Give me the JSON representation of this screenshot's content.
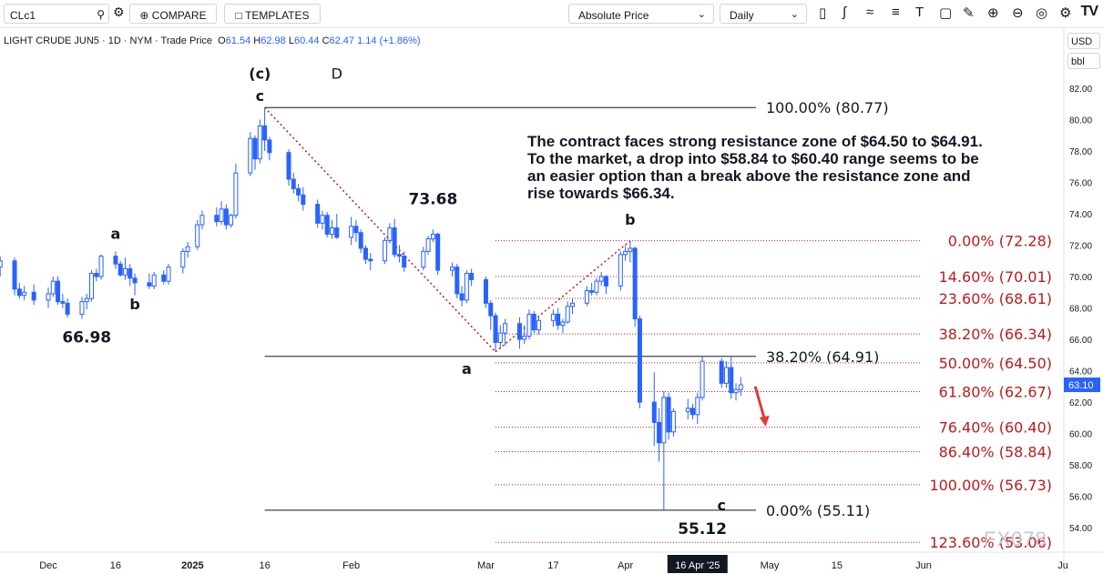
{
  "toolbar": {
    "symbol": "CLc1",
    "compare_label": "COMPARE",
    "templates_label": "TEMPLATES",
    "price_mode": "Absolute Price",
    "interval": "Daily",
    "logo": "TV"
  },
  "legend": {
    "name": "LIGHT CRUDE JUN5 · 1D · NYM · Trade Price",
    "o_label": "O",
    "o": "61.54",
    "h_label": "H",
    "h": "62.98",
    "l_label": "L",
    "l": "60.44",
    "c_label": "C",
    "c": "62.47",
    "change": "1.14 (+1.86%)"
  },
  "currency": "USD",
  "unit": "bbl",
  "note": "The contract faces strong resistance zone of $64.50 to $64.91. To the market, a drop into $58.84 to $60.40 range seems to be an easier option than a break above the resistance zone and rise towards $66.34.",
  "watermark": "FX078",
  "colors": {
    "up": "#ffffff",
    "down": "#2962ff",
    "fib": "#b71c1c",
    "line": "#131722",
    "arrow": "#e53935",
    "lastprice": "#2962ff"
  },
  "chart_data": {
    "type": "candlestick",
    "title": "",
    "ylim": [
      53.0,
      84.0
    ],
    "y_ticks": [
      54,
      56,
      58,
      60,
      62,
      64,
      66,
      68,
      70,
      72,
      74,
      76,
      78,
      80,
      82
    ],
    "y_tick_labels": [
      "54.00",
      "56.00",
      "58.00",
      "60.00",
      "62.00",
      "64.00",
      "66.00",
      "68.00",
      "70.00",
      "72.00",
      "74.00",
      "76.00",
      "78.00",
      "80.00",
      "82.00"
    ],
    "x_labels": [
      "Dec",
      "16",
      "2025",
      "16",
      "Feb",
      "Mar",
      "17",
      "Apr",
      "16 Apr '25",
      "May",
      "15",
      "Jun",
      "Ju"
    ],
    "x_label_dates": [
      "2024-12-02",
      "2024-12-16",
      "2025-01-01",
      "2025-01-16",
      "2025-02-03",
      "2025-03-03",
      "2025-03-17",
      "2025-04-01",
      "2025-04-16",
      "2025-05-01",
      "2025-05-15",
      "2025-06-02",
      "2025-07-01"
    ],
    "highlighted_x_label": "16 Apr '25",
    "last_price": 63.1,
    "last_price_label": "63.10",
    "candles": [
      {
        "d": "2024-11-20",
        "o": 69.5,
        "h": 70.2,
        "l": 69.0,
        "c": 69.8
      },
      {
        "d": "2024-11-21",
        "o": 69.8,
        "h": 71.1,
        "l": 69.5,
        "c": 70.6
      },
      {
        "d": "2024-11-22",
        "o": 70.6,
        "h": 71.3,
        "l": 70.0,
        "c": 71.0
      },
      {
        "d": "2024-11-25",
        "o": 71.0,
        "h": 71.2,
        "l": 68.8,
        "c": 69.2
      },
      {
        "d": "2024-11-26",
        "o": 69.2,
        "h": 69.6,
        "l": 68.6,
        "c": 68.8
      },
      {
        "d": "2024-11-27",
        "o": 68.8,
        "h": 69.4,
        "l": 68.5,
        "c": 69.0
      },
      {
        "d": "2024-11-29",
        "o": 69.0,
        "h": 69.5,
        "l": 68.2,
        "c": 68.5
      },
      {
        "d": "2024-12-02",
        "o": 68.5,
        "h": 69.3,
        "l": 68.0,
        "c": 68.9
      },
      {
        "d": "2024-12-03",
        "o": 68.9,
        "h": 70.0,
        "l": 68.7,
        "c": 69.7
      },
      {
        "d": "2024-12-04",
        "o": 69.7,
        "h": 70.0,
        "l": 68.2,
        "c": 68.4
      },
      {
        "d": "2024-12-05",
        "o": 68.4,
        "h": 68.9,
        "l": 68.0,
        "c": 68.3
      },
      {
        "d": "2024-12-06",
        "o": 68.3,
        "h": 68.6,
        "l": 67.4,
        "c": 67.6
      },
      {
        "d": "2024-12-09",
        "o": 67.6,
        "h": 68.7,
        "l": 67.3,
        "c": 68.4
      },
      {
        "d": "2024-12-10",
        "o": 68.4,
        "h": 68.9,
        "l": 67.9,
        "c": 68.6
      },
      {
        "d": "2024-12-11",
        "o": 68.6,
        "h": 70.4,
        "l": 68.4,
        "c": 70.2
      },
      {
        "d": "2024-12-12",
        "o": 70.2,
        "h": 70.5,
        "l": 69.7,
        "c": 70.0
      },
      {
        "d": "2024-12-13",
        "o": 70.0,
        "h": 71.4,
        "l": 69.8,
        "c": 71.3
      },
      {
        "d": "2024-12-16",
        "o": 71.3,
        "h": 71.6,
        "l": 70.5,
        "c": 70.8
      },
      {
        "d": "2024-12-17",
        "o": 70.8,
        "h": 71.0,
        "l": 70.0,
        "c": 70.1
      },
      {
        "d": "2024-12-18",
        "o": 70.1,
        "h": 71.2,
        "l": 69.8,
        "c": 70.5
      },
      {
        "d": "2024-12-19",
        "o": 70.5,
        "h": 70.8,
        "l": 69.4,
        "c": 69.9
      },
      {
        "d": "2024-12-20",
        "o": 69.9,
        "h": 70.2,
        "l": 68.8,
        "c": 69.6
      },
      {
        "d": "2024-12-23",
        "o": 69.6,
        "h": 70.2,
        "l": 69.2,
        "c": 69.4
      },
      {
        "d": "2024-12-24",
        "o": 69.4,
        "h": 70.3,
        "l": 69.2,
        "c": 70.1
      },
      {
        "d": "2024-12-26",
        "o": 70.1,
        "h": 70.4,
        "l": 69.5,
        "c": 69.7
      },
      {
        "d": "2024-12-27",
        "o": 69.7,
        "h": 70.8,
        "l": 69.5,
        "c": 70.6
      },
      {
        "d": "2024-12-30",
        "o": 70.6,
        "h": 71.8,
        "l": 70.2,
        "c": 71.6
      },
      {
        "d": "2024-12-31",
        "o": 71.6,
        "h": 72.2,
        "l": 71.2,
        "c": 71.9
      },
      {
        "d": "2025-01-02",
        "o": 71.9,
        "h": 73.6,
        "l": 71.7,
        "c": 73.3
      },
      {
        "d": "2025-01-03",
        "o": 73.3,
        "h": 74.2,
        "l": 73.0,
        "c": 73.9
      },
      {
        "d": "2025-01-06",
        "o": 73.9,
        "h": 74.4,
        "l": 73.2,
        "c": 73.5
      },
      {
        "d": "2025-01-07",
        "o": 73.5,
        "h": 74.8,
        "l": 73.3,
        "c": 74.3
      },
      {
        "d": "2025-01-08",
        "o": 74.3,
        "h": 74.6,
        "l": 73.0,
        "c": 73.3
      },
      {
        "d": "2025-01-09",
        "o": 73.3,
        "h": 74.0,
        "l": 73.1,
        "c": 73.9
      },
      {
        "d": "2025-01-10",
        "o": 73.9,
        "h": 77.2,
        "l": 73.7,
        "c": 76.6
      },
      {
        "d": "2025-01-13",
        "o": 76.6,
        "h": 79.2,
        "l": 76.4,
        "c": 78.8
      },
      {
        "d": "2025-01-14",
        "o": 78.8,
        "h": 79.0,
        "l": 76.8,
        "c": 77.5
      },
      {
        "d": "2025-01-15",
        "o": 77.5,
        "h": 80.0,
        "l": 77.2,
        "c": 79.6
      },
      {
        "d": "2025-01-16",
        "o": 79.6,
        "h": 80.77,
        "l": 78.0,
        "c": 78.7
      },
      {
        "d": "2025-01-17",
        "o": 78.7,
        "h": 78.9,
        "l": 77.4,
        "c": 77.9
      },
      {
        "d": "2025-01-21",
        "o": 77.9,
        "h": 78.1,
        "l": 75.8,
        "c": 76.2
      },
      {
        "d": "2025-01-22",
        "o": 76.2,
        "h": 76.6,
        "l": 75.3,
        "c": 75.6
      },
      {
        "d": "2025-01-23",
        "o": 75.6,
        "h": 75.9,
        "l": 74.8,
        "c": 75.2
      },
      {
        "d": "2025-01-24",
        "o": 75.2,
        "h": 75.7,
        "l": 74.2,
        "c": 74.6
      },
      {
        "d": "2025-01-27",
        "o": 74.6,
        "h": 74.9,
        "l": 73.1,
        "c": 73.4
      },
      {
        "d": "2025-01-28",
        "o": 73.4,
        "h": 74.2,
        "l": 73.0,
        "c": 73.9
      },
      {
        "d": "2025-01-29",
        "o": 73.9,
        "h": 74.1,
        "l": 72.5,
        "c": 72.7
      },
      {
        "d": "2025-01-30",
        "o": 72.7,
        "h": 73.6,
        "l": 72.4,
        "c": 73.1
      },
      {
        "d": "2025-01-31",
        "o": 73.1,
        "h": 74.0,
        "l": 72.4,
        "c": 72.5
      },
      {
        "d": "2025-02-03",
        "o": 72.5,
        "h": 73.8,
        "l": 72.0,
        "c": 73.2
      },
      {
        "d": "2025-02-04",
        "o": 73.2,
        "h": 73.6,
        "l": 72.2,
        "c": 72.8
      },
      {
        "d": "2025-02-05",
        "o": 72.8,
        "h": 73.0,
        "l": 71.5,
        "c": 71.8
      },
      {
        "d": "2025-02-06",
        "o": 71.8,
        "h": 72.0,
        "l": 70.8,
        "c": 71.1
      },
      {
        "d": "2025-02-07",
        "o": 71.1,
        "h": 71.5,
        "l": 70.4,
        "c": 71.0
      },
      {
        "d": "2025-02-10",
        "o": 71.0,
        "h": 72.5,
        "l": 70.8,
        "c": 72.3
      },
      {
        "d": "2025-02-11",
        "o": 72.3,
        "h": 73.4,
        "l": 72.1,
        "c": 73.1
      },
      {
        "d": "2025-02-12",
        "o": 73.1,
        "h": 73.68,
        "l": 71.2,
        "c": 71.4
      },
      {
        "d": "2025-02-13",
        "o": 71.4,
        "h": 72.0,
        "l": 70.9,
        "c": 71.3
      },
      {
        "d": "2025-02-14",
        "o": 71.3,
        "h": 71.6,
        "l": 70.3,
        "c": 70.6
      },
      {
        "d": "2025-02-18",
        "o": 70.6,
        "h": 71.9,
        "l": 70.4,
        "c": 71.6
      },
      {
        "d": "2025-02-19",
        "o": 71.6,
        "h": 72.6,
        "l": 71.4,
        "c": 72.4
      },
      {
        "d": "2025-02-20",
        "o": 72.4,
        "h": 73.0,
        "l": 72.2,
        "c": 72.7
      },
      {
        "d": "2025-02-21",
        "o": 72.7,
        "h": 72.8,
        "l": 70.1,
        "c": 70.4
      },
      {
        "d": "2025-02-24",
        "o": 70.4,
        "h": 70.9,
        "l": 70.0,
        "c": 70.6
      },
      {
        "d": "2025-02-25",
        "o": 70.6,
        "h": 70.8,
        "l": 68.6,
        "c": 68.9
      },
      {
        "d": "2025-02-26",
        "o": 68.9,
        "h": 69.4,
        "l": 68.1,
        "c": 68.5
      },
      {
        "d": "2025-02-27",
        "o": 68.5,
        "h": 70.4,
        "l": 68.3,
        "c": 70.2
      },
      {
        "d": "2025-02-28",
        "o": 70.2,
        "h": 70.5,
        "l": 69.4,
        "c": 69.8
      },
      {
        "d": "2025-03-03",
        "o": 69.8,
        "h": 70.0,
        "l": 68.0,
        "c": 68.3
      },
      {
        "d": "2025-03-04",
        "o": 68.3,
        "h": 68.5,
        "l": 66.6,
        "c": 67.5
      },
      {
        "d": "2025-03-05",
        "o": 67.5,
        "h": 67.7,
        "l": 65.2,
        "c": 65.8
      },
      {
        "d": "2025-03-06",
        "o": 65.8,
        "h": 66.9,
        "l": 65.4,
        "c": 66.4
      },
      {
        "d": "2025-03-07",
        "o": 66.4,
        "h": 67.3,
        "l": 65.6,
        "c": 67.0
      },
      {
        "d": "2025-03-10",
        "o": 67.0,
        "h": 67.4,
        "l": 65.4,
        "c": 66.0
      },
      {
        "d": "2025-03-11",
        "o": 66.0,
        "h": 66.9,
        "l": 65.7,
        "c": 66.2
      },
      {
        "d": "2025-03-12",
        "o": 66.2,
        "h": 67.9,
        "l": 66.0,
        "c": 67.6
      },
      {
        "d": "2025-03-13",
        "o": 67.6,
        "h": 67.8,
        "l": 66.4,
        "c": 66.6
      },
      {
        "d": "2025-03-14",
        "o": 66.6,
        "h": 67.4,
        "l": 66.3,
        "c": 67.2
      },
      {
        "d": "2025-03-17",
        "o": 67.2,
        "h": 67.9,
        "l": 66.8,
        "c": 67.6
      },
      {
        "d": "2025-03-18",
        "o": 67.6,
        "h": 68.0,
        "l": 66.6,
        "c": 66.9
      },
      {
        "d": "2025-03-19",
        "o": 66.9,
        "h": 67.3,
        "l": 66.4,
        "c": 67.1
      },
      {
        "d": "2025-03-20",
        "o": 67.1,
        "h": 68.4,
        "l": 67.0,
        "c": 68.1
      },
      {
        "d": "2025-03-21",
        "o": 68.1,
        "h": 68.6,
        "l": 67.6,
        "c": 68.3
      },
      {
        "d": "2025-03-24",
        "o": 68.3,
        "h": 69.4,
        "l": 68.1,
        "c": 69.1
      },
      {
        "d": "2025-03-25",
        "o": 69.1,
        "h": 69.6,
        "l": 68.8,
        "c": 69.0
      },
      {
        "d": "2025-03-26",
        "o": 69.0,
        "h": 69.9,
        "l": 68.8,
        "c": 69.7
      },
      {
        "d": "2025-03-27",
        "o": 69.7,
        "h": 70.3,
        "l": 69.4,
        "c": 70.0
      },
      {
        "d": "2025-03-28",
        "o": 70.0,
        "h": 70.1,
        "l": 68.9,
        "c": 69.4
      },
      {
        "d": "2025-03-31",
        "o": 69.4,
        "h": 71.6,
        "l": 69.1,
        "c": 71.4
      },
      {
        "d": "2025-04-01",
        "o": 71.4,
        "h": 72.0,
        "l": 71.0,
        "c": 71.6
      },
      {
        "d": "2025-04-02",
        "o": 71.6,
        "h": 72.28,
        "l": 70.9,
        "c": 71.8
      },
      {
        "d": "2025-04-03",
        "o": 71.8,
        "h": 71.9,
        "l": 66.8,
        "c": 67.3
      },
      {
        "d": "2025-04-04",
        "o": 67.3,
        "h": 67.5,
        "l": 61.6,
        "c": 62.0
      },
      {
        "d": "2025-04-07",
        "o": 62.0,
        "h": 63.9,
        "l": 59.2,
        "c": 60.7
      },
      {
        "d": "2025-04-08",
        "o": 60.7,
        "h": 61.6,
        "l": 58.2,
        "c": 59.4
      },
      {
        "d": "2025-04-09",
        "o": 59.4,
        "h": 62.7,
        "l": 55.12,
        "c": 62.3
      },
      {
        "d": "2025-04-10",
        "o": 62.3,
        "h": 62.6,
        "l": 59.6,
        "c": 60.1
      },
      {
        "d": "2025-04-11",
        "o": 60.1,
        "h": 61.6,
        "l": 59.8,
        "c": 61.4
      },
      {
        "d": "2025-04-14",
        "o": 61.4,
        "h": 62.2,
        "l": 60.9,
        "c": 61.6
      },
      {
        "d": "2025-04-15",
        "o": 61.6,
        "h": 61.9,
        "l": 60.9,
        "c": 61.2
      },
      {
        "d": "2025-04-16",
        "o": 61.2,
        "h": 62.6,
        "l": 60.6,
        "c": 62.3
      },
      {
        "d": "2025-04-17",
        "o": 62.3,
        "h": 64.9,
        "l": 62.1,
        "c": 64.6
      },
      {
        "d": "2025-04-21",
        "o": 64.6,
        "h": 64.8,
        "l": 62.9,
        "c": 63.2
      },
      {
        "d": "2025-04-22",
        "o": 63.2,
        "h": 64.6,
        "l": 62.9,
        "c": 64.2
      },
      {
        "d": "2025-04-23",
        "o": 64.2,
        "h": 64.91,
        "l": 62.2,
        "c": 62.6
      },
      {
        "d": "2025-04-24",
        "o": 62.6,
        "h": 63.2,
        "l": 62.1,
        "c": 62.8
      },
      {
        "d": "2025-04-25",
        "o": 62.8,
        "h": 63.6,
        "l": 62.4,
        "c": 63.1
      }
    ],
    "fib_left": {
      "color": "#131722",
      "levels": [
        {
          "label": "100.00% (80.77)",
          "value": 80.77
        },
        {
          "label": "38.20% (64.91)",
          "value": 64.91
        },
        {
          "label": "0.00% (55.11)",
          "value": 55.11
        }
      ]
    },
    "fib_right": {
      "color": "#b71c1c",
      "levels": [
        {
          "label": "0.00% (72.28)",
          "value": 72.28
        },
        {
          "label": "14.60% (70.01)",
          "value": 70.01
        },
        {
          "label": "23.60% (68.61)",
          "value": 68.61
        },
        {
          "label": "38.20% (66.34)",
          "value": 66.34
        },
        {
          "label": "50.00% (64.50)",
          "value": 64.5
        },
        {
          "label": "61.80% (62.67)",
          "value": 62.67
        },
        {
          "label": "76.40% (60.40)",
          "value": 60.4
        },
        {
          "label": "86.40% (58.84)",
          "value": 58.84
        },
        {
          "label": "100.00% (56.73)",
          "value": 56.73
        },
        {
          "label": "123.60% (53.06)",
          "value": 53.06
        }
      ]
    },
    "wave_labels": [
      {
        "text": "a",
        "d": "2024-12-16",
        "y": 72.4
      },
      {
        "text": "b",
        "d": "2024-12-20",
        "y": 67.9
      },
      {
        "text": "66.98",
        "d": "2024-12-10",
        "y": 65.8
      },
      {
        "text": "(c)",
        "d": "2025-01-15",
        "y": 82.6
      },
      {
        "text": "D",
        "d": "2025-01-31",
        "y": 82.6
      },
      {
        "text": "c",
        "d": "2025-01-15",
        "y": 81.2
      },
      {
        "text": "73.68",
        "d": "2025-02-20",
        "y": 74.6
      },
      {
        "text": "a",
        "d": "2025-02-27",
        "y": 63.8
      },
      {
        "text": "b",
        "d": "2025-04-02",
        "y": 73.3
      },
      {
        "text": "c",
        "d": "2025-04-21",
        "y": 55.1
      },
      {
        "text": "55.12",
        "d": "2025-04-17",
        "y": 53.6
      }
    ],
    "trendlines": [
      {
        "from": {
          "d": "2025-01-16",
          "y": 80.77
        },
        "to": {
          "d": "2025-03-05",
          "y": 65.2
        }
      },
      {
        "from": {
          "d": "2025-03-05",
          "y": 65.2
        },
        "to": {
          "d": "2025-04-02",
          "y": 72.28
        }
      }
    ],
    "arrow": {
      "from": {
        "d": "2025-04-28",
        "y": 63.0
      },
      "to": {
        "d": "2025-04-30",
        "y": 60.5
      }
    }
  }
}
